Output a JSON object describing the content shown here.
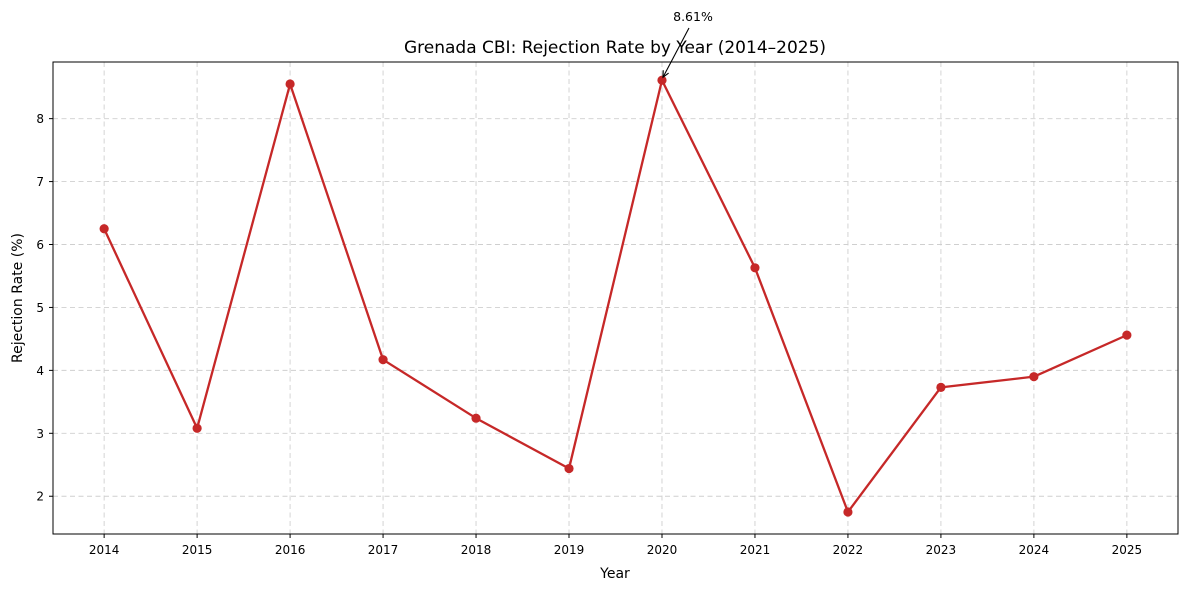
{
  "chart_data": {
    "type": "line",
    "title": "Grenada CBI: Rejection Rate by Year (2014–2025)",
    "xlabel": "Year",
    "ylabel": "Rejection Rate (%)",
    "x": [
      "2014",
      "2015",
      "2016",
      "2017",
      "2018",
      "2019",
      "2020",
      "2021",
      "2022",
      "2023",
      "2024",
      "2025"
    ],
    "series": [
      {
        "values": [
          6.25,
          3.08,
          8.55,
          4.17,
          3.24,
          2.44,
          8.61,
          5.63,
          1.75,
          3.73,
          3.9,
          4.56
        ],
        "color": "#c62828"
      }
    ],
    "yticks": [
      2,
      3,
      4,
      5,
      6,
      7,
      8
    ],
    "ylim": [
      1.4,
      8.9
    ],
    "grid": true,
    "annotation": {
      "text": "8.61%",
      "x": "2020",
      "y": 8.61
    }
  }
}
